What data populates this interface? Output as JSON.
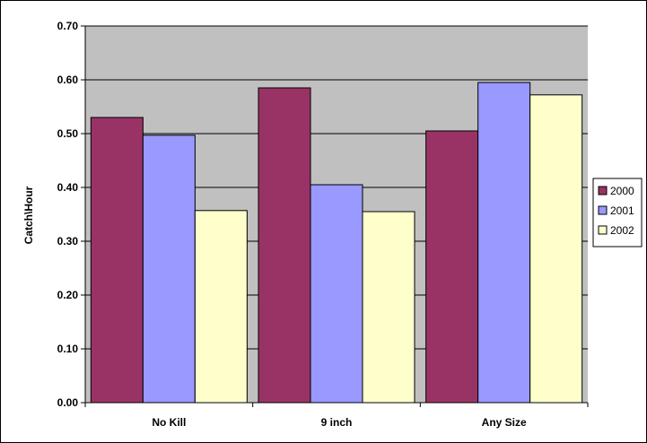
{
  "chart_data": {
    "type": "bar",
    "title": "",
    "xlabel": "",
    "ylabel": "Catch\\Hour",
    "categories": [
      "No Kill",
      "9 inch",
      "Any Size"
    ],
    "series": [
      {
        "name": "2000",
        "values": [
          0.53,
          0.585,
          0.505
        ],
        "color": "#993366"
      },
      {
        "name": "2001",
        "values": [
          0.497,
          0.405,
          0.595
        ],
        "color": "#9999ff"
      },
      {
        "name": "2002",
        "values": [
          0.357,
          0.355,
          0.572
        ],
        "color": "#ffffcc"
      }
    ],
    "ylim": [
      0,
      0.7
    ],
    "yticks": [
      "0.00",
      "0.10",
      "0.20",
      "0.30",
      "0.40",
      "0.50",
      "0.60",
      "0.70"
    ],
    "grid": true,
    "plot_background": "#c0c0c0",
    "legend_position": "right"
  }
}
